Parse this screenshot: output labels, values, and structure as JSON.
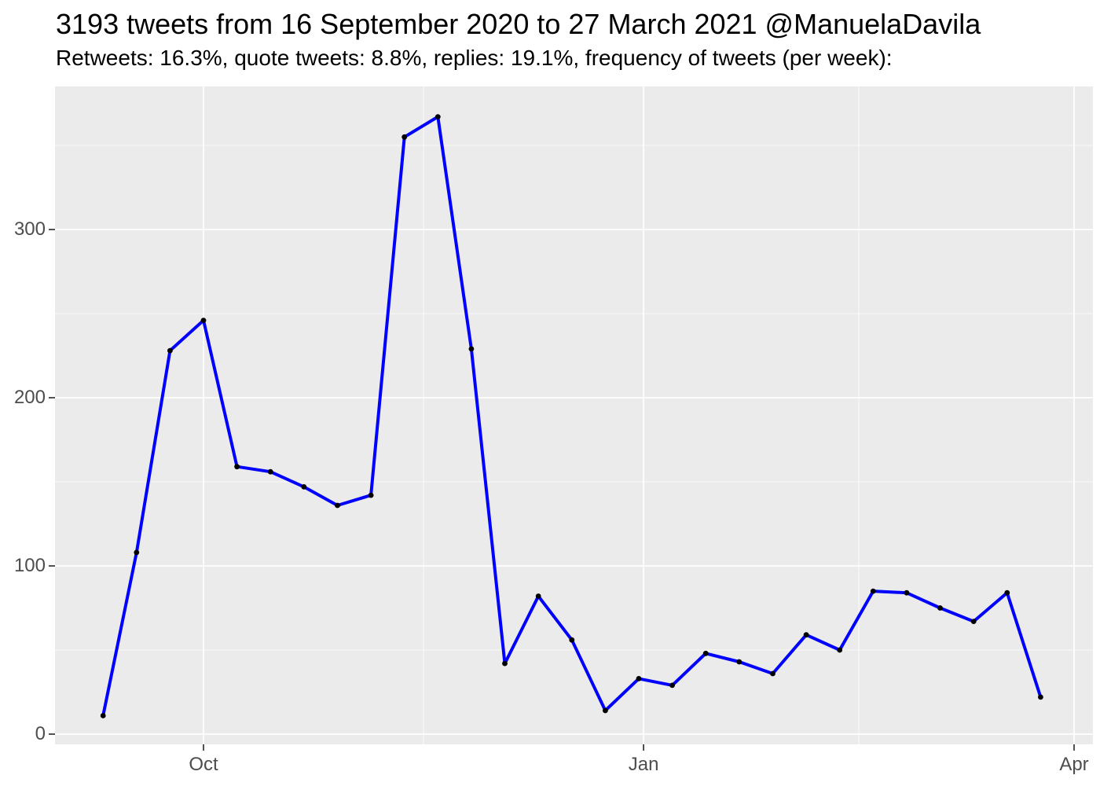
{
  "header": {
    "title": "3193 tweets from 16 September 2020 to 27 March 2021 @ManuelaDavila",
    "subtitle": "Retweets: 16.3%, quote tweets: 8.8%, replies: 19.1%, frequency of tweets (per week):"
  },
  "chart_data": {
    "type": "line",
    "title": "3193 tweets from 16 September 2020 to 27 March 2021 @ManuelaDavila",
    "subtitle": "Retweets: 16.3%, quote tweets: 8.8%, replies: 19.1%, frequency of tweets (per week):",
    "xlabel": "",
    "ylabel": "",
    "ylim": [
      -7,
      385
    ],
    "grid": true,
    "legend": "none",
    "panel_bg": "#EBEBEB",
    "grid_color": "#FFFFFF",
    "tick_color": "#333333",
    "axis_text_color": "#4d4d4d",
    "series": [
      {
        "name": "tweets-per-week",
        "color": "#0000FF",
        "point_color": "#000000",
        "x": [
          "2020-09-10",
          "2020-09-17",
          "2020-09-24",
          "2020-10-01",
          "2020-10-08",
          "2020-10-15",
          "2020-10-22",
          "2020-10-29",
          "2020-11-05",
          "2020-11-12",
          "2020-11-19",
          "2020-11-26",
          "2020-12-03",
          "2020-12-10",
          "2020-12-17",
          "2020-12-24",
          "2020-12-31",
          "2021-01-07",
          "2021-01-14",
          "2021-01-21",
          "2021-01-28",
          "2021-02-04",
          "2021-02-11",
          "2021-02-18",
          "2021-02-25",
          "2021-03-04",
          "2021-03-11",
          "2021-03-18",
          "2021-03-25"
        ],
        "y": [
          11,
          108,
          228,
          246,
          159,
          156,
          147,
          136,
          142,
          355,
          367,
          229,
          42,
          82,
          56,
          14,
          33,
          29,
          48,
          43,
          36,
          59,
          50,
          85,
          84,
          75,
          67,
          84,
          22
        ]
      }
    ],
    "x_ticks": [
      {
        "date": "2020-10-01",
        "label": "Oct"
      },
      {
        "date": "2021-01-01",
        "label": "Jan"
      },
      {
        "date": "2021-04-01",
        "label": "Apr"
      }
    ],
    "x_minor": [
      "2020-11-16",
      "2021-02-15"
    ],
    "y_ticks": [
      {
        "value": 0,
        "label": "0"
      },
      {
        "value": 100,
        "label": "100"
      },
      {
        "value": 200,
        "label": "200"
      },
      {
        "value": 300,
        "label": "300"
      }
    ],
    "y_minor": [
      50,
      150,
      250,
      350
    ]
  }
}
